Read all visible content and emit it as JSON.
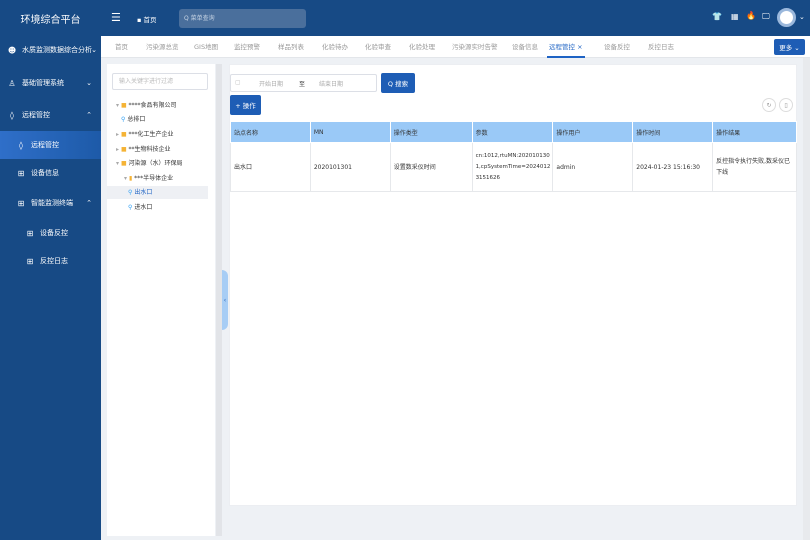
{
  "app": {
    "title": "环境综合平台"
  },
  "header": {
    "home_label": "首页",
    "search_placeholder": "菜单查询",
    "icons": [
      "shirt-icon",
      "qrcode-icon",
      "fire-icon",
      "monitor-icon",
      "avatar"
    ]
  },
  "sidebar": {
    "items": [
      {
        "label": "水质监测数据综合分析",
        "icon": "analysis-icon",
        "chevron": "⌄"
      },
      {
        "label": "基础管理系统",
        "icon": "system-icon",
        "chevron": "⌄"
      },
      {
        "label": "远程管控",
        "icon": "drop-icon",
        "chevron": "⌃"
      },
      {
        "label": "远程管控",
        "icon": "drop-icon",
        "active": true
      },
      {
        "label": "设备信息",
        "icon": "grid-icon"
      },
      {
        "label": "智能监测终端",
        "icon": "grid-icon",
        "chevron": "⌃"
      },
      {
        "label": "设备反控",
        "icon": "grid-icon"
      },
      {
        "label": "反控日志",
        "icon": "grid-icon"
      }
    ]
  },
  "tabs": [
    {
      "label": "首页"
    },
    {
      "label": "污染源总览"
    },
    {
      "label": "GIS地图"
    },
    {
      "label": "监控预警"
    },
    {
      "label": "样品列表"
    },
    {
      "label": "化验待办"
    },
    {
      "label": "化验审查"
    },
    {
      "label": "化验处理"
    },
    {
      "label": "污染源实时告警"
    },
    {
      "label": "设备信息"
    },
    {
      "label": "远程管控",
      "active": true,
      "close": "×"
    },
    {
      "label": "设备反控"
    },
    {
      "label": "反控日志"
    }
  ],
  "more_label": "更多 ⌄",
  "tree": {
    "filter_placeholder": "输入关键字进行过滤",
    "nodes": [
      {
        "label": "****食品有限公司",
        "arrow": "▾",
        "type": "folder"
      },
      {
        "label": "总排口",
        "type": "point"
      },
      {
        "label": "***化工生产企业",
        "arrow": "▸",
        "type": "folder"
      },
      {
        "label": "**生物科技企业",
        "arrow": "▸",
        "type": "folder"
      },
      {
        "label": "河染源（水）环保局",
        "arrow": "▾",
        "type": "folder"
      },
      {
        "label": "***半导体企业",
        "arrow": "▾",
        "type": "building"
      },
      {
        "label": "出水口",
        "type": "point",
        "selected": true
      },
      {
        "label": "进水口",
        "type": "point"
      }
    ]
  },
  "filters": {
    "start_placeholder": "开始日期",
    "separator": "至",
    "end_placeholder": "结束日期",
    "search_label": "Q 搜索"
  },
  "toolbar": {
    "add_label": "+ 操作"
  },
  "table": {
    "headers": [
      "站点名称",
      "MN",
      "操作类型",
      "参数",
      "操作用户",
      "操作时间",
      "操作结果"
    ],
    "rows": [
      [
        "出水口",
        "2020101301",
        "设置数采仪时间",
        "cn:1012,rtuMN:2020101301,cpSystemTime=20240123151626",
        "admin",
        "2024-01-23 15:16:30",
        "反控指令执行失败,数采仪已下线"
      ]
    ]
  },
  "colors": {
    "primary": "#174a85",
    "accent": "#1e5db5",
    "table_header": "#9ac9f7"
  }
}
